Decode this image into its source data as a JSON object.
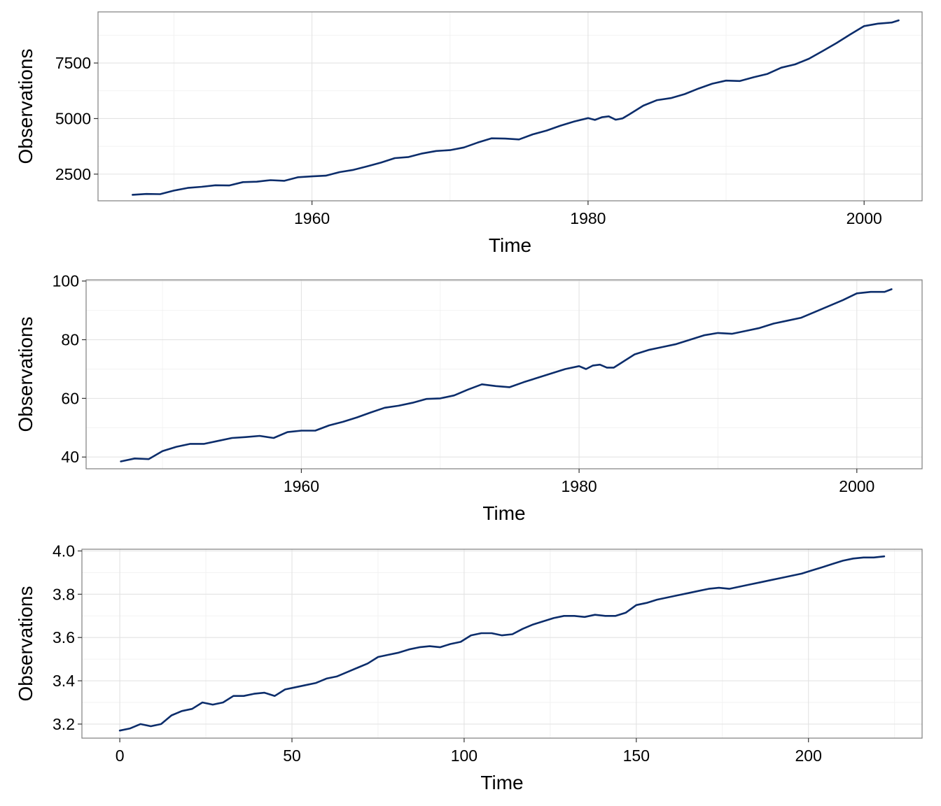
{
  "chart_data": [
    {
      "type": "line",
      "xlabel": "Time",
      "ylabel": "Observations",
      "xlim": [
        1944.5,
        2004.2
      ],
      "ylim": [
        1300,
        9800
      ],
      "xticks": [
        1960,
        1980,
        2000
      ],
      "xtick_labels": [
        "1960",
        "1980",
        "2000"
      ],
      "xminor": [
        1950,
        1970,
        1990
      ],
      "yticks": [
        2500,
        5000,
        7500
      ],
      "ytick_labels": [
        "2500",
        "5000",
        "7500"
      ],
      "yminor": [
        1250,
        3750,
        6250,
        8750
      ],
      "grid": true,
      "color": "#0c2d6b",
      "series": [
        {
          "x": [
            1947.0,
            1948.0,
            1949.0,
            1950.0,
            1951.0,
            1952.0,
            1953.0,
            1954.0,
            1955.0,
            1956.0,
            1957.0,
            1958.0,
            1959.0,
            1960.0,
            1961.0,
            1962.0,
            1963.0,
            1964.0,
            1965.0,
            1966.0,
            1967.0,
            1968.0,
            1969.0,
            1970.0,
            1971.0,
            1972.0,
            1973.0,
            1974.0,
            1975.0,
            1976.0,
            1977.0,
            1978.0,
            1979.0,
            1980.0,
            1980.5,
            1981.0,
            1981.5,
            1982.0,
            1982.5,
            1983.0,
            1984.0,
            1985.0,
            1986.0,
            1987.0,
            1988.0,
            1989.0,
            1990.0,
            1991.0,
            1992.0,
            1993.0,
            1994.0,
            1995.0,
            1996.0,
            1997.0,
            1998.0,
            1999.0,
            2000.0,
            2001.0,
            2002.0,
            2002.5
          ],
          "y": [
            1570,
            1610,
            1600,
            1760,
            1880,
            1930,
            2000,
            1990,
            2140,
            2160,
            2230,
            2200,
            2360,
            2400,
            2430,
            2590,
            2690,
            2850,
            3020,
            3220,
            3270,
            3430,
            3540,
            3580,
            3700,
            3920,
            4110,
            4100,
            4060,
            4290,
            4460,
            4680,
            4870,
            5020,
            4940,
            5060,
            5100,
            4950,
            5010,
            5190,
            5580,
            5830,
            5920,
            6100,
            6350,
            6570,
            6710,
            6690,
            6860,
            7010,
            7290,
            7440,
            7690,
            8040,
            8400,
            8790,
            9160,
            9270,
            9320,
            9420
          ]
        }
      ]
    },
    {
      "type": "line",
      "xlabel": "Time",
      "ylabel": "Observations",
      "xlim": [
        1944.5,
        2004.7
      ],
      "ylim": [
        36,
        100.4
      ],
      "xticks": [
        1960,
        1980,
        2000
      ],
      "xtick_labels": [
        "1960",
        "1980",
        "2000"
      ],
      "xminor": [
        1950,
        1970,
        1990
      ],
      "yticks": [
        40,
        60,
        80,
        100
      ],
      "ytick_labels": [
        "40",
        "60",
        "80",
        "100"
      ],
      "yminor": [
        50,
        70,
        90
      ],
      "grid": true,
      "color": "#0c2d6b",
      "series": [
        {
          "x": [
            1947.0,
            1948.0,
            1949.0,
            1950.0,
            1951.0,
            1952.0,
            1953.0,
            1954.0,
            1955.0,
            1956.0,
            1957.0,
            1958.0,
            1959.0,
            1960.0,
            1961.0,
            1962.0,
            1963.0,
            1964.0,
            1965.0,
            1966.0,
            1967.0,
            1968.0,
            1969.0,
            1970.0,
            1971.0,
            1972.0,
            1973.0,
            1974.0,
            1975.0,
            1976.0,
            1977.0,
            1978.0,
            1979.0,
            1980.0,
            1980.5,
            1981.0,
            1981.5,
            1982.0,
            1982.5,
            1983.0,
            1984.0,
            1985.0,
            1986.0,
            1987.0,
            1988.0,
            1989.0,
            1990.0,
            1991.0,
            1992.0,
            1993.0,
            1994.0,
            1995.0,
            1996.0,
            1997.0,
            1998.0,
            1999.0,
            2000.0,
            2001.0,
            2002.0,
            2002.5
          ],
          "y": [
            38.5,
            39.5,
            39.3,
            42.0,
            43.5,
            44.5,
            44.5,
            45.5,
            46.5,
            46.8,
            47.2,
            46.5,
            48.5,
            49.0,
            49.0,
            50.8,
            52.0,
            53.5,
            55.2,
            56.8,
            57.5,
            58.5,
            59.8,
            60.0,
            61.0,
            63.0,
            64.8,
            64.2,
            63.8,
            65.5,
            67.0,
            68.5,
            70.0,
            71.0,
            70.0,
            71.2,
            71.5,
            70.5,
            70.5,
            72.0,
            75.0,
            76.5,
            77.5,
            78.5,
            80.0,
            81.5,
            82.3,
            82.0,
            83.0,
            84.0,
            85.5,
            86.5,
            87.5,
            89.5,
            91.5,
            93.5,
            95.8,
            96.3,
            96.3,
            97.2
          ]
        }
      ]
    },
    {
      "type": "line",
      "xlabel": "Time",
      "ylabel": "Observations",
      "xlim": [
        -11,
        233
      ],
      "ylim": [
        3.135,
        4.008
      ],
      "xticks": [
        0,
        50,
        100,
        150,
        200
      ],
      "xtick_labels": [
        "0",
        "50",
        "100",
        "150",
        "200"
      ],
      "xminor": [
        25,
        75,
        125,
        175,
        225
      ],
      "yticks": [
        3.2,
        3.4,
        3.6,
        3.8,
        4.0
      ],
      "ytick_labels": [
        "3.2",
        "3.4",
        "3.6",
        "3.8",
        "4.0"
      ],
      "yminor": [
        3.3,
        3.5,
        3.7,
        3.9
      ],
      "grid": true,
      "color": "#0c2d6b",
      "series": [
        {
          "x": [
            0,
            3,
            6,
            9,
            12,
            15,
            18,
            21,
            24,
            27,
            30,
            33,
            36,
            39,
            42,
            45,
            48,
            51,
            54,
            57,
            60,
            63,
            66,
            69,
            72,
            75,
            78,
            81,
            84,
            87,
            90,
            93,
            96,
            99,
            102,
            105,
            108,
            111,
            114,
            117,
            120,
            123,
            126,
            129,
            132,
            135,
            138,
            141,
            144,
            147,
            150,
            153,
            156,
            159,
            162,
            165,
            168,
            171,
            174,
            177,
            180,
            183,
            186,
            189,
            192,
            195,
            198,
            201,
            204,
            207,
            210,
            213,
            216,
            219,
            222
          ],
          "y": [
            3.17,
            3.18,
            3.2,
            3.19,
            3.2,
            3.24,
            3.26,
            3.27,
            3.3,
            3.29,
            3.3,
            3.33,
            3.33,
            3.34,
            3.345,
            3.33,
            3.36,
            3.37,
            3.38,
            3.39,
            3.41,
            3.42,
            3.44,
            3.46,
            3.48,
            3.51,
            3.52,
            3.53,
            3.545,
            3.555,
            3.56,
            3.555,
            3.57,
            3.58,
            3.61,
            3.62,
            3.62,
            3.61,
            3.615,
            3.64,
            3.66,
            3.675,
            3.69,
            3.7,
            3.7,
            3.695,
            3.705,
            3.7,
            3.7,
            3.715,
            3.75,
            3.76,
            3.775,
            3.785,
            3.795,
            3.805,
            3.815,
            3.825,
            3.83,
            3.825,
            3.835,
            3.845,
            3.855,
            3.865,
            3.875,
            3.885,
            3.895,
            3.91,
            3.925,
            3.94,
            3.955,
            3.965,
            3.97,
            3.97,
            3.975
          ]
        }
      ]
    }
  ]
}
